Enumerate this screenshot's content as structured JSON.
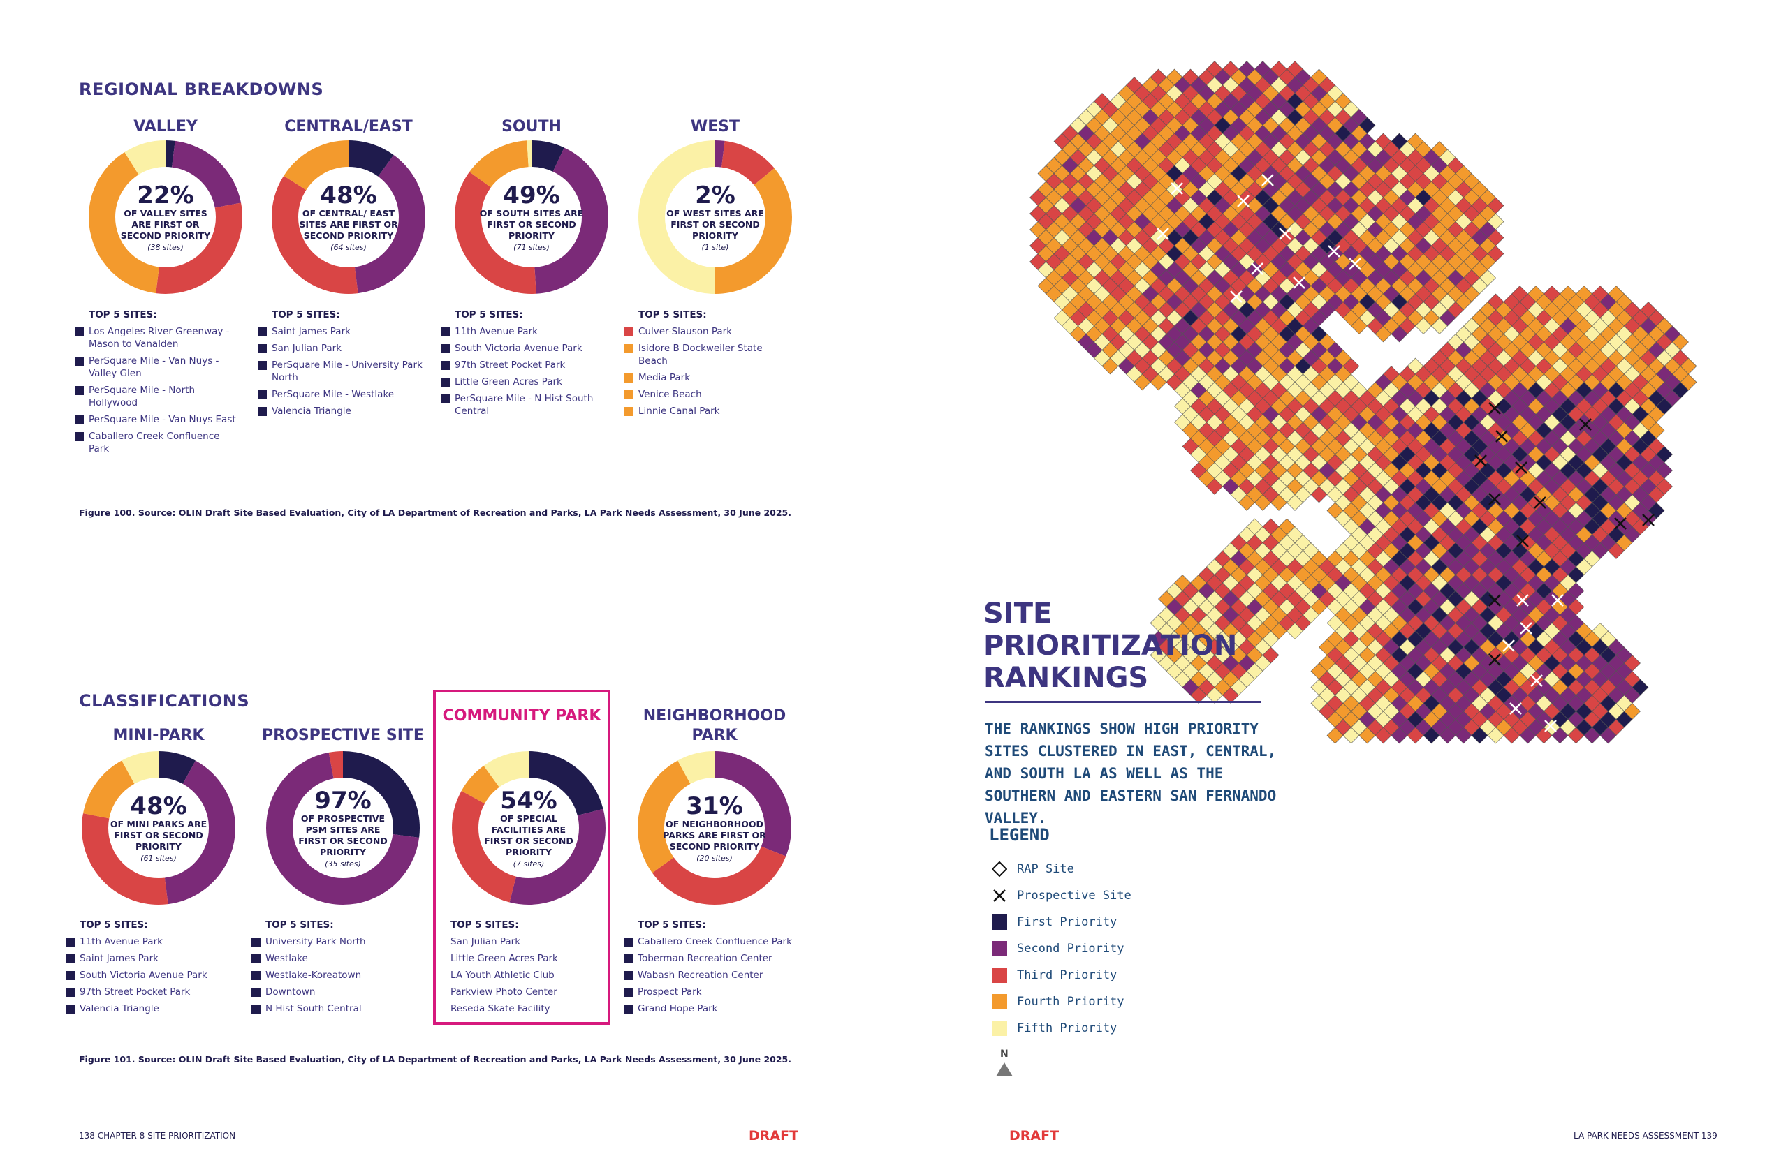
{
  "left_page": {
    "regional": {
      "title": "REGIONAL BREAKDOWNS",
      "caption": "Figure 100. Source: OLIN Draft Site Based Evaluation, City of LA Department of Recreation and Parks, LA Park Needs Assessment, 30 June 2025.",
      "donuts": [
        {
          "title": "VALLEY",
          "pct": "22%",
          "text": "OF VALLEY SITES ARE FIRST OR SECOND PRIORITY",
          "sub": "(38 sites)",
          "top_label": "TOP 5 SITES:",
          "segments": [
            0.02,
            0.2,
            0.3,
            0.39,
            0.09
          ],
          "items": [
            {
              "label": "Los Angeles River Greenway - Mason to Vanalden",
              "color": "#1f1b4d"
            },
            {
              "label": "PerSquare Mile - Van Nuys - Valley Glen",
              "color": "#1f1b4d"
            },
            {
              "label": "PerSquare Mile - North Hollywood",
              "color": "#1f1b4d"
            },
            {
              "label": "PerSquare Mile - Van Nuys East",
              "color": "#1f1b4d"
            },
            {
              "label": "Caballero Creek Confluence Park",
              "color": "#1f1b4d"
            }
          ]
        },
        {
          "title": "CENTRAL/EAST",
          "pct": "48%",
          "text": "OF CENTRAL/ EAST SITES ARE FIRST OR SECOND PRIORITY",
          "sub": "(64 sites)",
          "top_label": "TOP 5 SITES:",
          "segments": [
            0.1,
            0.38,
            0.36,
            0.16,
            0.0
          ],
          "items": [
            {
              "label": "Saint James Park",
              "color": "#1f1b4d"
            },
            {
              "label": "San Julian Park",
              "color": "#1f1b4d"
            },
            {
              "label": "PerSquare Mile - University Park North",
              "color": "#1f1b4d"
            },
            {
              "label": "PerSquare Mile - Westlake",
              "color": "#1f1b4d"
            },
            {
              "label": "Valencia Triangle",
              "color": "#1f1b4d"
            }
          ]
        },
        {
          "title": "SOUTH",
          "pct": "49%",
          "text": "OF SOUTH SITES ARE FIRST OR SECOND PRIORITY",
          "sub": "(71 sites)",
          "top_label": "TOP 5 SITES:",
          "segments": [
            0.07,
            0.42,
            0.36,
            0.14,
            0.01
          ],
          "items": [
            {
              "label": "11th Avenue Park",
              "color": "#1f1b4d"
            },
            {
              "label": "South Victoria Avenue Park",
              "color": "#1f1b4d"
            },
            {
              "label": "97th Street Pocket Park",
              "color": "#1f1b4d"
            },
            {
              "label": "Little Green Acres Park",
              "color": "#1f1b4d"
            },
            {
              "label": "PerSquare Mile - N Hist South Central",
              "color": "#1f1b4d"
            }
          ]
        },
        {
          "title": "WEST",
          "pct": "2%",
          "text": "OF WEST SITES ARE FIRST OR SECOND PRIORITY",
          "sub": "(1 site)",
          "top_label": "TOP 5 SITES:",
          "segments": [
            0.0,
            0.02,
            0.12,
            0.36,
            0.5
          ],
          "items": [
            {
              "label": "Culver-Slauson Park",
              "color": "#d94545"
            },
            {
              "label": "Isidore B Dockweiler State Beach",
              "color": "#f39a2d"
            },
            {
              "label": "Media Park",
              "color": "#f39a2d"
            },
            {
              "label": "Venice Beach",
              "color": "#f39a2d"
            },
            {
              "label": "Linnie Canal Park",
              "color": "#f39a2d"
            }
          ]
        }
      ]
    },
    "classifications": {
      "title": "CLASSIFICATIONS",
      "caption": "Figure 101.  Source: OLIN Draft Site Based Evaluation, City of LA Department of Recreation and Parks, LA Park Needs Assessment, 30 June 2025.",
      "donuts": [
        {
          "title": "MINI-PARK",
          "pct": "48%",
          "text": "OF MINI PARKS ARE FIRST OR SECOND PRIORITY",
          "sub": "(61 sites)",
          "top_label": "TOP 5 SITES:",
          "segments": [
            0.08,
            0.4,
            0.3,
            0.14,
            0.08
          ],
          "items": [
            {
              "label": "11th Avenue Park",
              "color": "#1f1b4d"
            },
            {
              "label": "Saint James Park",
              "color": "#1f1b4d"
            },
            {
              "label": "South Victoria Avenue Park",
              "color": "#1f1b4d"
            },
            {
              "label": "97th Street Pocket Park",
              "color": "#1f1b4d"
            },
            {
              "label": "Valencia Triangle",
              "color": "#1f1b4d"
            }
          ]
        },
        {
          "title": "PROSPECTIVE SITE",
          "pct": "97%",
          "text": "OF PROSPECTIVE PSM SITES ARE FIRST OR SECOND PRIORITY",
          "sub": "(35 sites)",
          "top_label": "TOP 5 SITES:",
          "segments": [
            0.27,
            0.7,
            0.03,
            0.0,
            0.0
          ],
          "items": [
            {
              "label": "University Park North",
              "color": "#1f1b4d"
            },
            {
              "label": "Westlake",
              "color": "#1f1b4d"
            },
            {
              "label": "Westlake-Koreatown",
              "color": "#1f1b4d"
            },
            {
              "label": "Downtown",
              "color": "#1f1b4d"
            },
            {
              "label": "N Hist South Central",
              "color": "#1f1b4d"
            }
          ]
        },
        {
          "title": "COMMUNITY PARK",
          "pct": "54%",
          "text": "OF SPECIAL FACILITIES ARE FIRST OR SECOND PRIORITY",
          "sub": "(7 sites)",
          "top_label": "TOP 5 SITES:",
          "segments": [
            0.21,
            0.33,
            0.29,
            0.07,
            0.1
          ],
          "items": [
            {
              "label": "San Julian Park",
              "color": "#ffffff"
            },
            {
              "label": "Little Green Acres Park",
              "color": "#ffffff"
            },
            {
              "label": "LA Youth Athletic Club",
              "color": "#ffffff"
            },
            {
              "label": "Parkview Photo Center",
              "color": "#ffffff"
            },
            {
              "label": "Reseda Skate Facility",
              "color": "#ffffff"
            }
          ]
        },
        {
          "title": "NEIGHBORHOOD PARK",
          "pct": "31%",
          "text": "OF NEIGHBORHOOD PARKS ARE FIRST OR SECOND PRIORITY",
          "sub": "(20 sites)",
          "top_label": "TOP 5 SITES:",
          "segments": [
            0.0,
            0.31,
            0.34,
            0.27,
            0.08
          ],
          "items": [
            {
              "label": "Caballero Creek Confluence Park",
              "color": "#1f1b4d"
            },
            {
              "label": "Toberman Recreation Center",
              "color": "#1f1b4d"
            },
            {
              "label": "Wabash Recreation Center",
              "color": "#1f1b4d"
            },
            {
              "label": "Prospect Park",
              "color": "#1f1b4d"
            },
            {
              "label": "Grand Hope Park",
              "color": "#1f1b4d"
            }
          ]
        }
      ]
    },
    "footer": "138 CHAPTER 8 SITE PRIORITIZATION",
    "draft": "DRAFT"
  },
  "right_page": {
    "title_lines": [
      "SITE",
      "PRIORITIZATION",
      "RANKINGS"
    ],
    "lede": "THE RANKINGS SHOW HIGH PRIORITY SITES CLUSTERED IN EAST, CENTRAL, AND SOUTH LA AS WELL AS THE SOUTHERN AND EASTERN SAN FERNANDO VALLEY.",
    "legend": {
      "title": "LEGEND",
      "rap": "RAP Site",
      "prospective": "Prospective Site",
      "items": [
        {
          "label": "First Priority",
          "color": "#1f1b4d"
        },
        {
          "label": "Second Priority",
          "color": "#7b2a78"
        },
        {
          "label": "Third Priority",
          "color": "#d94545"
        },
        {
          "label": "Fourth Priority",
          "color": "#f39a2d"
        },
        {
          "label": "Fifth Priority",
          "color": "#fbf1a6"
        }
      ],
      "north": "N"
    },
    "footer": "LA PARK NEEDS ASSESSMENT  139",
    "draft": "DRAFT"
  },
  "colors": {
    "first": "#1f1b4d",
    "second": "#7b2a78",
    "third": "#d94545",
    "fourth": "#f39a2d",
    "fifth": "#fbf1a6",
    "highlight": "#d6197d"
  }
}
